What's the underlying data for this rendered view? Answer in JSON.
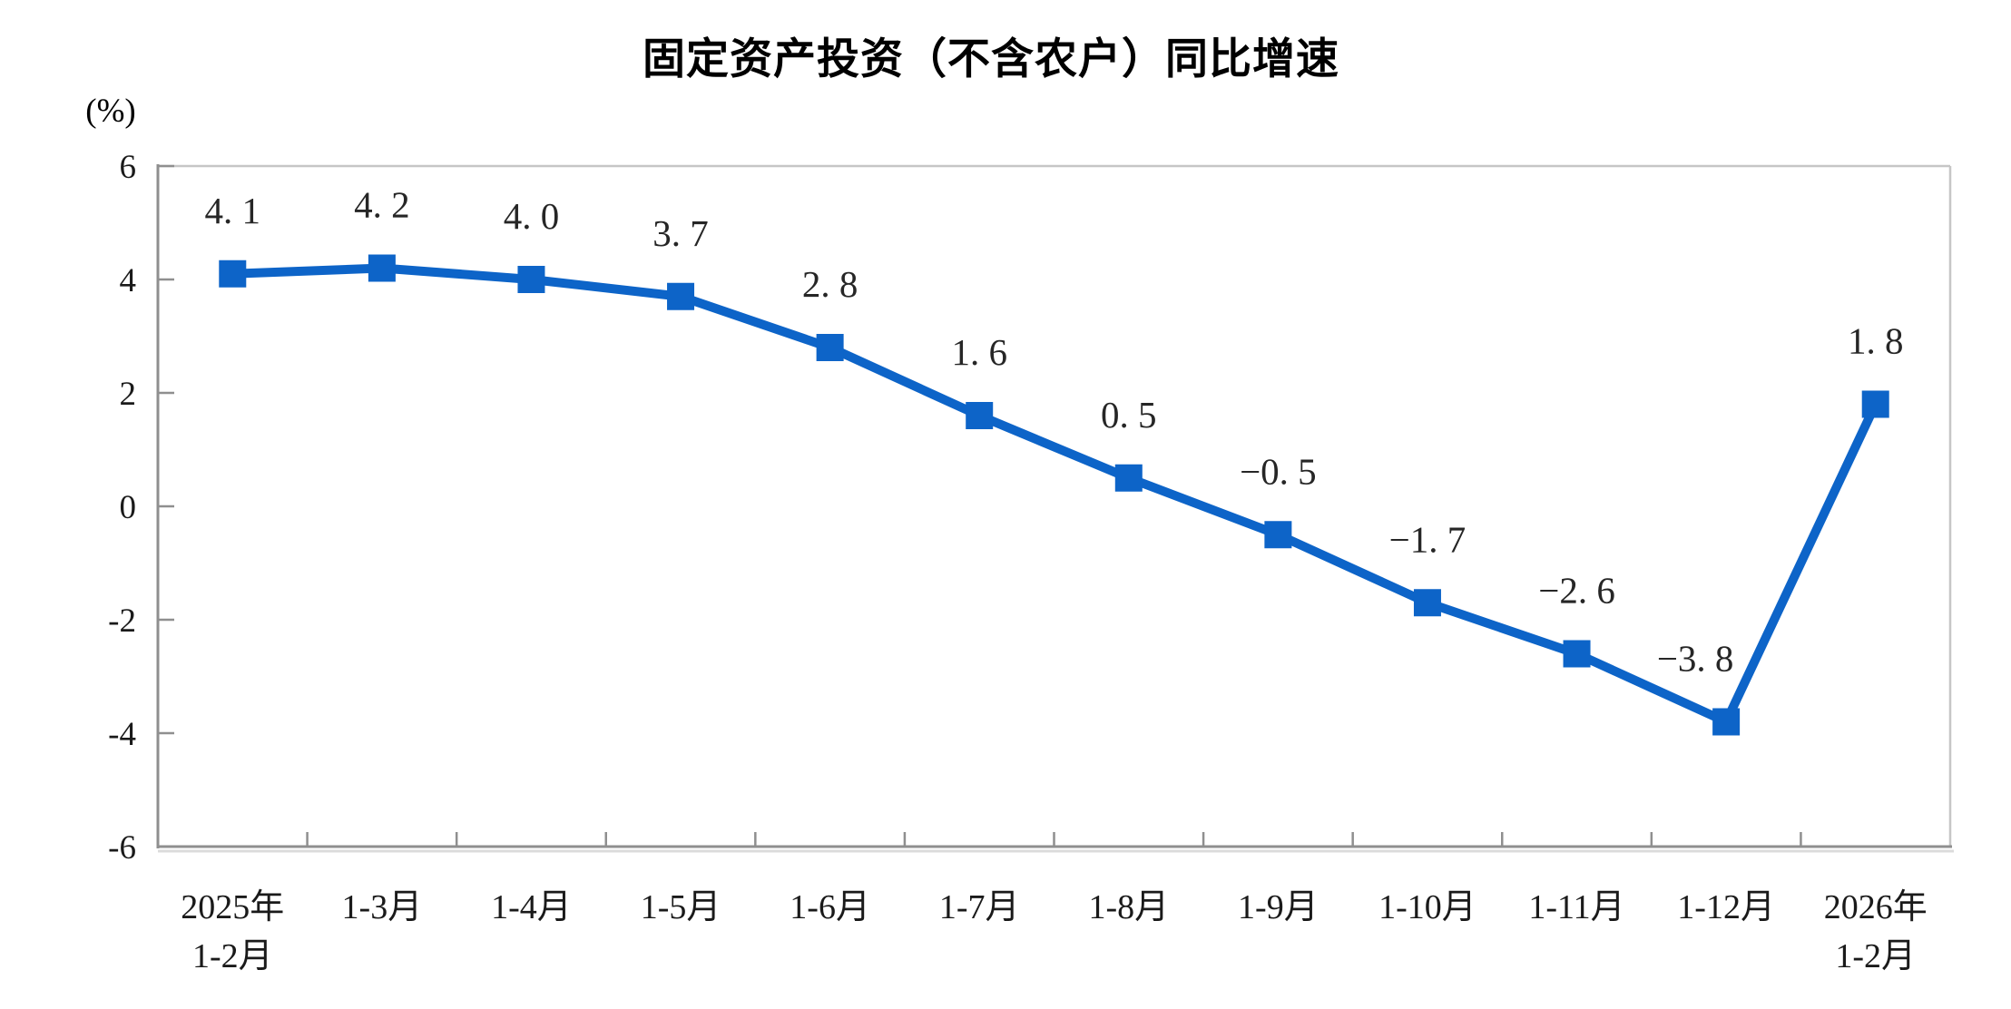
{
  "page": {
    "background": "#ffffff"
  },
  "chart_data": {
    "type": "line",
    "title": "固定资产投资（不含农户）同比增速",
    "unit_label": "(%)",
    "categories": [
      "2025年\n1-2月",
      "1-3月",
      "1-4月",
      "1-5月",
      "1-6月",
      "1-7月",
      "1-8月",
      "1-9月",
      "1-10月",
      "1-11月",
      "1-12月",
      "2026年\n1-2月"
    ],
    "series": [
      {
        "name": "固定资产投资（不含农户）同比增速",
        "values": [
          4.1,
          4.2,
          4.0,
          3.7,
          2.8,
          1.6,
          0.5,
          -0.5,
          -1.7,
          -2.6,
          -3.8,
          1.8
        ]
      }
    ],
    "point_labels": [
      "4. 1",
      "4. 2",
      "4. 0",
      "3. 7",
      "2. 8",
      "1. 6",
      "0. 5",
      "−0. 5",
      "−1. 7",
      "−2. 6",
      "−3. 8",
      "1. 8"
    ],
    "xlabel": "",
    "ylabel": "(%)",
    "ylim": [
      -6,
      6
    ],
    "y_ticks": [
      6,
      4,
      2,
      0,
      -2,
      -4,
      -6
    ],
    "y_tick_labels": [
      "6",
      "4",
      "2",
      "0",
      "-2",
      "-4",
      "-6"
    ],
    "grid": false,
    "legend": "none",
    "marker": "square"
  },
  "colors": {
    "series": "#0D64C8",
    "point_label": "#262626",
    "axis": "#8F8F8F",
    "frame_light": "#C6C6C6",
    "axis_shadow": "#DBDBDB",
    "tick_label": "#1A1A1A",
    "title": "#000000"
  }
}
